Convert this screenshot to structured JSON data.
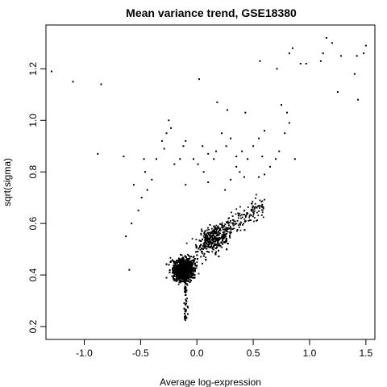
{
  "chart_data": {
    "type": "scatter",
    "title": "Mean variance trend, GSE18380",
    "xlabel": "Average log-expression",
    "ylabel": "sqrt(sigma)",
    "xlim": [
      -1.34,
      1.58
    ],
    "ylim": [
      0.15,
      1.37
    ],
    "xticks": [
      -1.0,
      -0.5,
      0.0,
      0.5,
      1.0,
      1.5
    ],
    "xtick_labels": [
      "-1.0",
      "-0.5",
      "0.0",
      "0.5",
      "1.0",
      "1.5"
    ],
    "yticks": [
      0.2,
      0.4,
      0.6,
      0.8,
      1.0,
      1.2
    ],
    "ytick_labels": [
      "0.2",
      "0.4",
      "0.6",
      "0.8",
      "1.0",
      "1.2"
    ],
    "grid": false,
    "legend": "none",
    "point_color": "#000000",
    "series": [
      {
        "points": [
          [
            -1.29,
            1.19
          ],
          [
            -1.1,
            1.15
          ],
          [
            -0.85,
            1.14
          ],
          [
            -0.88,
            0.87
          ],
          [
            0.02,
            1.16
          ],
          [
            0.56,
            1.23
          ],
          [
            0.71,
            1.2
          ],
          [
            0.82,
            1.26
          ],
          [
            0.85,
            1.28
          ],
          [
            0.92,
            1.22
          ],
          [
            0.97,
            1.22
          ],
          [
            1.1,
            1.23
          ],
          [
            1.12,
            1.26
          ],
          [
            1.15,
            1.32
          ],
          [
            1.2,
            1.3
          ],
          [
            1.28,
            1.25
          ],
          [
            1.25,
            1.11
          ],
          [
            1.4,
            1.18
          ],
          [
            1.42,
            1.25
          ],
          [
            1.48,
            1.26
          ],
          [
            1.5,
            1.29
          ],
          [
            1.43,
            1.08
          ],
          [
            0.75,
            1.06
          ],
          [
            0.8,
            1.03
          ],
          [
            0.18,
            1.07
          ],
          [
            0.27,
            1.04
          ],
          [
            0.43,
            1.03
          ],
          [
            -0.25,
            1.0
          ],
          [
            -0.27,
            0.95
          ],
          [
            -0.23,
            0.97
          ],
          [
            -0.31,
            0.92
          ],
          [
            -0.29,
            0.89
          ],
          [
            -0.12,
            0.9
          ],
          [
            -0.1,
            0.92
          ],
          [
            0.05,
            0.9
          ],
          [
            0.1,
            0.87
          ],
          [
            0.15,
            0.85
          ],
          [
            0.17,
            0.88
          ],
          [
            -0.47,
            0.85
          ],
          [
            -0.46,
            0.8
          ],
          [
            -0.36,
            0.85
          ],
          [
            -0.2,
            0.83
          ],
          [
            -0.15,
            0.85
          ],
          [
            -0.03,
            0.85
          ],
          [
            0.01,
            0.83
          ],
          [
            0.06,
            0.8
          ],
          [
            -0.65,
            0.86
          ],
          [
            -0.56,
            0.75
          ],
          [
            0.22,
            0.95
          ],
          [
            0.26,
            0.9
          ],
          [
            0.3,
            0.93
          ],
          [
            0.35,
            0.86
          ],
          [
            0.4,
            0.88
          ],
          [
            0.45,
            0.85
          ],
          [
            0.5,
            0.9
          ],
          [
            0.55,
            0.93
          ],
          [
            0.58,
            0.86
          ],
          [
            0.6,
            0.96
          ],
          [
            0.65,
            0.82
          ],
          [
            0.7,
            0.85
          ],
          [
            0.73,
            0.88
          ],
          [
            0.78,
            0.95
          ],
          [
            0.82,
            0.99
          ],
          [
            0.87,
            0.85
          ],
          [
            0.38,
            0.8
          ],
          [
            0.42,
            0.78
          ],
          [
            0.55,
            0.78
          ],
          [
            0.6,
            0.79
          ],
          [
            0.35,
            0.82
          ],
          [
            -0.58,
            0.6
          ],
          [
            -0.63,
            0.55
          ],
          [
            -0.6,
            0.42
          ],
          [
            -0.52,
            0.65
          ],
          [
            -0.49,
            0.7
          ],
          [
            -0.44,
            0.73
          ],
          [
            -0.4,
            0.77
          ],
          [
            -0.1,
            0.75
          ],
          [
            0.1,
            0.76
          ],
          [
            0.25,
            0.73
          ],
          [
            0.3,
            0.77
          ]
        ]
      }
    ]
  }
}
